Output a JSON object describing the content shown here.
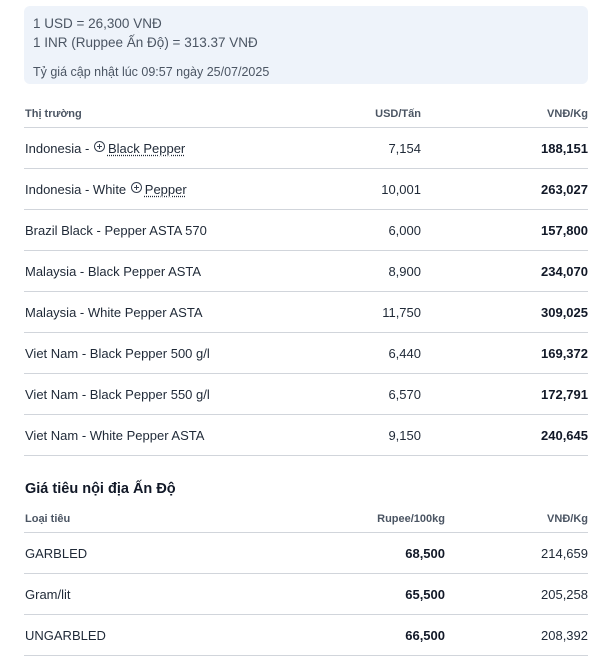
{
  "exchange": {
    "usd_line": "1 USD = 26,300 VNĐ",
    "inr_line": "1 INR (Ruppee Ấn Độ) = 313.37 VNĐ",
    "updated": "Tỷ giá cập nhật lúc 09:57 ngày 25/07/2025"
  },
  "market_table": {
    "headers": {
      "market": "Thị trường",
      "usd": "USD/Tấn",
      "vnd": "VNĐ/Kg"
    },
    "rows": [
      {
        "pre": "Indonesia - ",
        "link": "Black Pepper",
        "post": "",
        "usd": "7,154",
        "vnd": "188,151"
      },
      {
        "pre": "Indonesia - White ",
        "link": "Pepper",
        "post": "",
        "usd": "10,001",
        "vnd": "263,027"
      },
      {
        "pre": "Brazil Black - Pepper ASTA 570",
        "usd": "6,000",
        "vnd": "157,800"
      },
      {
        "pre": "Malaysia - Black Pepper ASTA",
        "usd": "8,900",
        "vnd": "234,070"
      },
      {
        "pre": "Malaysia - White Pepper ASTA",
        "usd": "11,750",
        "vnd": "309,025"
      },
      {
        "pre": "Viet Nam - Black Pepper 500 g/l",
        "usd": "6,440",
        "vnd": "169,372"
      },
      {
        "pre": "Viet Nam - Black Pepper 550 g/l",
        "usd": "6,570",
        "vnd": "172,791"
      },
      {
        "pre": "Viet Nam - White Pepper ASTA",
        "usd": "9,150",
        "vnd": "240,645"
      }
    ]
  },
  "india": {
    "title": "Giá tiêu nội địa Ấn Độ",
    "headers": {
      "type": "Loại tiêu",
      "rupee": "Rupee/100kg",
      "vnd": "VNĐ/Kg"
    },
    "rows": [
      {
        "type": "GARBLED",
        "rupee": "68,500",
        "vnd": "214,659"
      },
      {
        "type": "Gram/lit",
        "rupee": "65,500",
        "vnd": "205,258"
      },
      {
        "type": "UNGARBLED",
        "rupee": "66,500",
        "vnd": "208,392"
      }
    ]
  },
  "icons": {
    "expand": "plus-circle-icon"
  }
}
